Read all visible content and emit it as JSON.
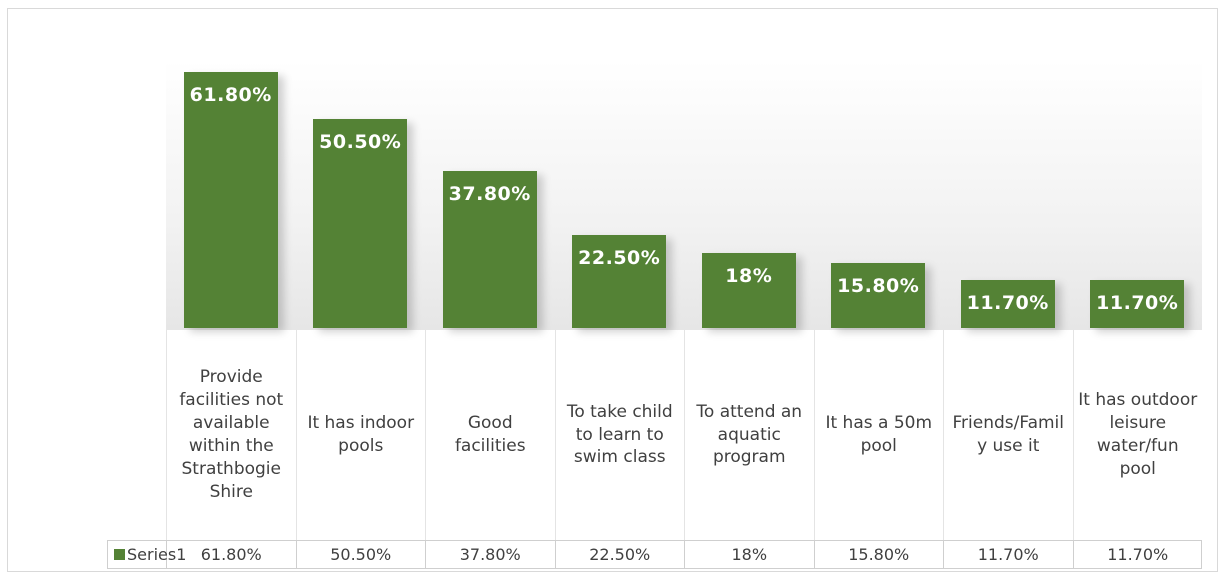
{
  "chart_data": {
    "type": "bar",
    "categories": [
      "Provide facilities not available within the Strathbogie Shire",
      "It has indoor pools",
      "Good facilities",
      "To take child to learn to swim class",
      "To attend an aquatic program",
      "It has a 50m pool",
      "Friends/Family use it",
      "It has outdoor leisure water/fun pool"
    ],
    "series": [
      {
        "name": "Series1",
        "color": "#548235",
        "values": [
          61.8,
          50.5,
          37.8,
          22.5,
          18,
          15.8,
          11.7,
          11.7
        ],
        "value_labels": [
          "61.80%",
          "50.50%",
          "37.80%",
          "22.50%",
          "18%",
          "15.80%",
          "11.70%",
          "11.70%"
        ]
      }
    ]
  }
}
